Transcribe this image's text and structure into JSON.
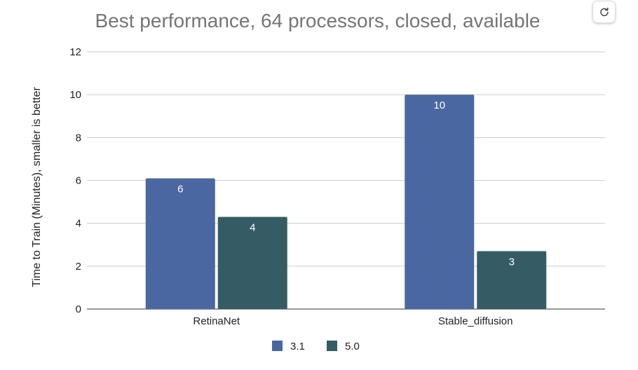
{
  "chart_data": {
    "type": "bar",
    "title": "Best performance, 64 processors, closed, available",
    "xlabel": "",
    "ylabel": "Time to Train (Minutes), smaller is better",
    "categories": [
      "RetinaNet",
      "Stable_diffusion"
    ],
    "series": [
      {
        "name": "3.1",
        "color": "#4a67a1",
        "values": [
          6.1,
          10.0
        ],
        "labels": [
          "6",
          "10"
        ]
      },
      {
        "name": "5.0",
        "color": "#355c64",
        "values": [
          4.3,
          2.7
        ],
        "labels": [
          "4",
          "3"
        ]
      }
    ],
    "ylim": [
      0,
      12
    ],
    "yticks": [
      0,
      2,
      4,
      6,
      8,
      10,
      12
    ],
    "grid": true,
    "legend": "bottom"
  },
  "toolbar": {
    "refresh_icon": "refresh-icon"
  }
}
